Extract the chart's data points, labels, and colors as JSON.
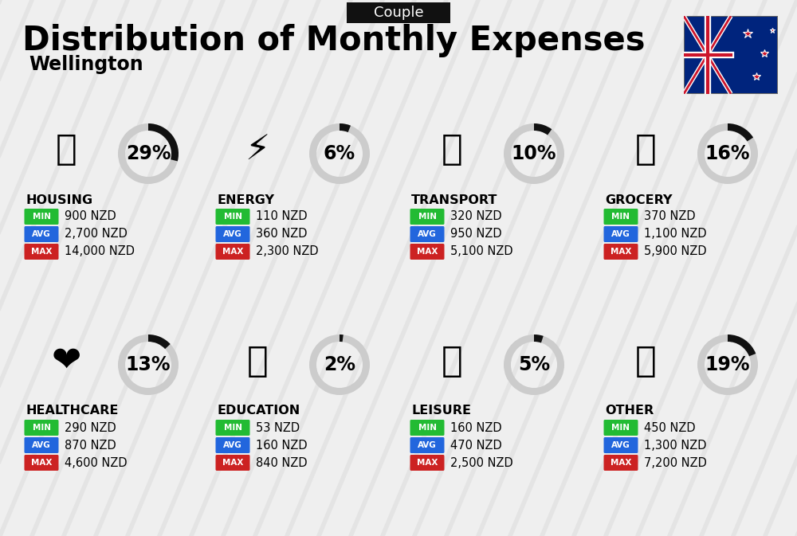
{
  "title": "Distribution of Monthly Expenses",
  "subtitle": "Wellington",
  "header_label": "Couple",
  "background_color": "#efefef",
  "categories": [
    {
      "name": "HOUSING",
      "pct": 29,
      "min_val": "900 NZD",
      "avg_val": "2,700 NZD",
      "max_val": "14,000 NZD",
      "row": 0,
      "col": 0
    },
    {
      "name": "ENERGY",
      "pct": 6,
      "min_val": "110 NZD",
      "avg_val": "360 NZD",
      "max_val": "2,300 NZD",
      "row": 0,
      "col": 1
    },
    {
      "name": "TRANSPORT",
      "pct": 10,
      "min_val": "320 NZD",
      "avg_val": "950 NZD",
      "max_val": "5,100 NZD",
      "row": 0,
      "col": 2
    },
    {
      "name": "GROCERY",
      "pct": 16,
      "min_val": "370 NZD",
      "avg_val": "1,100 NZD",
      "max_val": "5,900 NZD",
      "row": 0,
      "col": 3
    },
    {
      "name": "HEALTHCARE",
      "pct": 13,
      "min_val": "290 NZD",
      "avg_val": "870 NZD",
      "max_val": "4,600 NZD",
      "row": 1,
      "col": 0
    },
    {
      "name": "EDUCATION",
      "pct": 2,
      "min_val": "53 NZD",
      "avg_val": "160 NZD",
      "max_val": "840 NZD",
      "row": 1,
      "col": 1
    },
    {
      "name": "LEISURE",
      "pct": 5,
      "min_val": "160 NZD",
      "avg_val": "470 NZD",
      "max_val": "2,500 NZD",
      "row": 1,
      "col": 2
    },
    {
      "name": "OTHER",
      "pct": 19,
      "min_val": "450 NZD",
      "avg_val": "1,300 NZD",
      "max_val": "7,200 NZD",
      "row": 1,
      "col": 3
    }
  ],
  "min_color": "#22bb33",
  "avg_color": "#2266dd",
  "max_color": "#cc2222",
  "ring_filled_color": "#111111",
  "ring_empty_color": "#cccccc",
  "title_fontsize": 30,
  "subtitle_fontsize": 17,
  "header_fontsize": 13,
  "cat_name_fontsize": 11.5,
  "val_fontsize": 10.5,
  "pct_fontsize": 17,
  "badge_label_fontsize": 7.5
}
